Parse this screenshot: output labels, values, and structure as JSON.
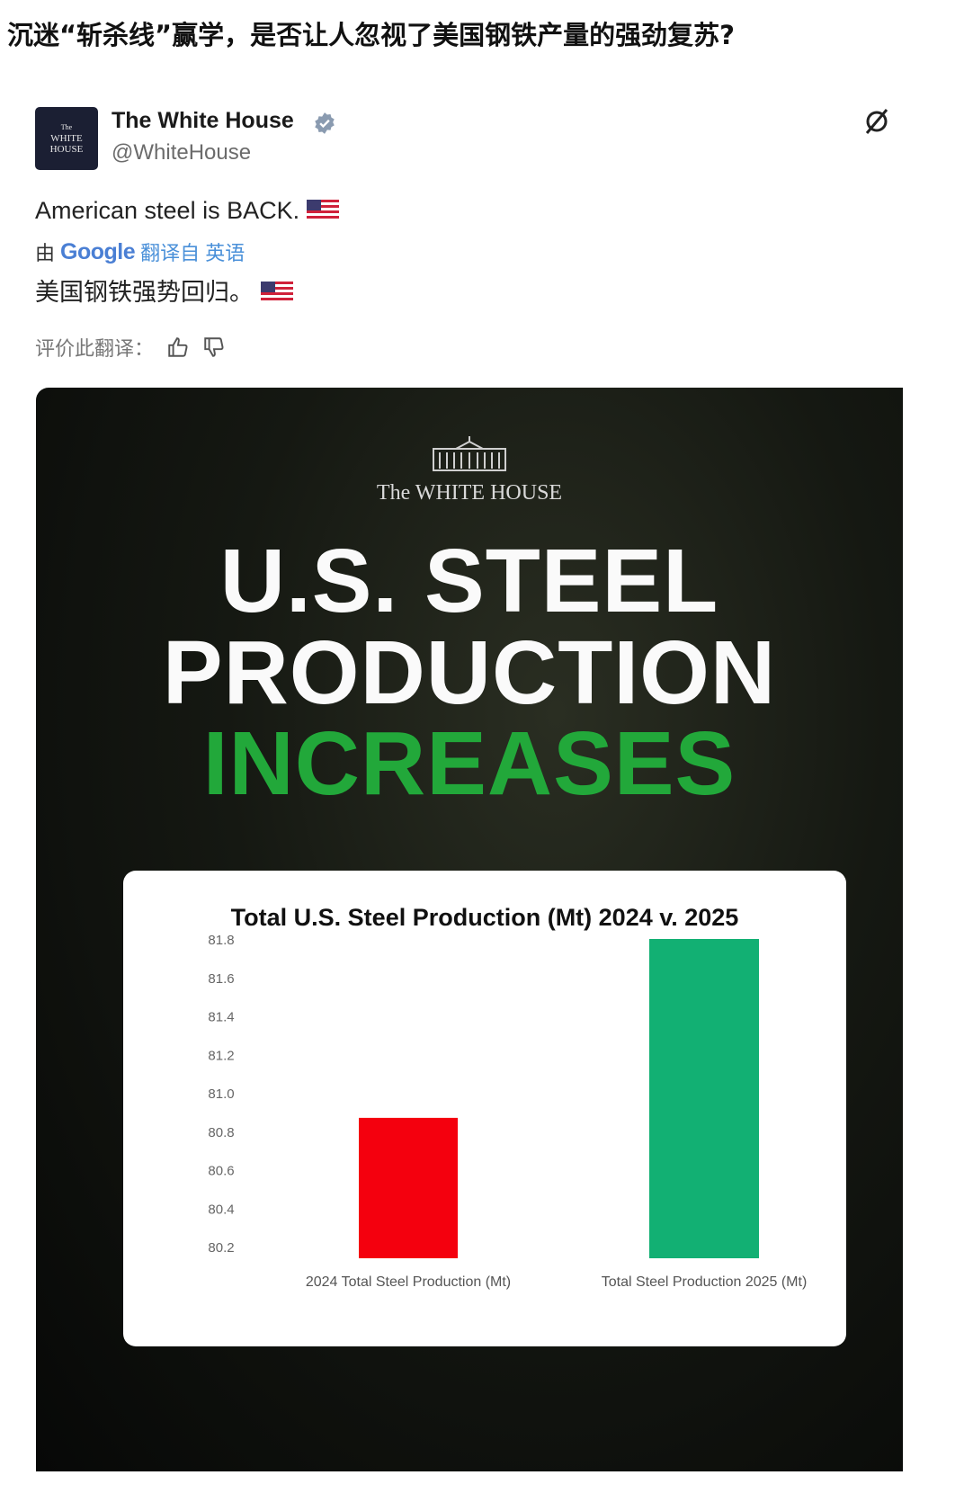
{
  "headline": "沉迷“斩杀线”赢学，是否让人忽视了美国钢铁产量的强劲复苏?",
  "post": {
    "avatar_text": [
      "The",
      "WHITE",
      "HOUSE"
    ],
    "author_name": "The White House",
    "handle": "@WhiteHouse",
    "verified_icon": "verified-badge-icon",
    "grok_icon": "grok-icon",
    "text": "American steel is BACK.",
    "translation_by": "由",
    "translation_brand": "Google",
    "translated_from": "翻译自 英语",
    "translated_text": "美国钢铁强势回归。",
    "rate_translation": "评价此翻译：",
    "colors": {
      "accent": "#4a90d9"
    }
  },
  "poster": {
    "brand": "The WHITE HOUSE",
    "line1": "U.S. STEEL",
    "line2": "PRODUCTION",
    "line3": "INCREASES",
    "highlight_color": "#22a83a"
  },
  "chart_data": {
    "type": "bar",
    "title": "Total U.S. Steel Production (Mt) 2024 v. 2025",
    "categories": [
      "2024 Total Steel Production (Mt)",
      "Total Steel Production 2025 (Mt)"
    ],
    "values": [
      80.87,
      81.8
    ],
    "colors": [
      "#f4000e",
      "#12b073"
    ],
    "yticks": [
      "80.2",
      "80.4",
      "80.6",
      "80.8",
      "81.0",
      "81.2",
      "81.4",
      "81.6",
      "81.8"
    ],
    "ylim": [
      80.14,
      81.8
    ],
    "xlabel": "",
    "ylabel": "",
    "grid": false
  }
}
